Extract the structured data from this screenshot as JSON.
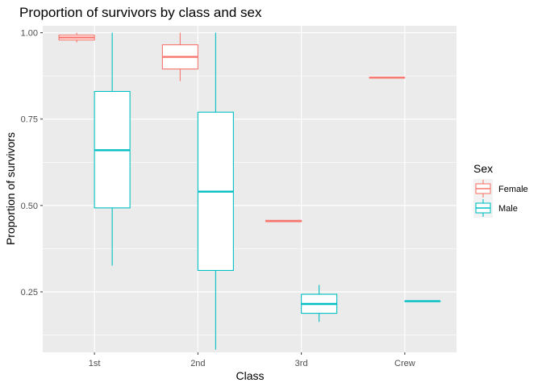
{
  "chart_data": {
    "type": "boxplot",
    "title": "Proportion of survivors by class and sex",
    "xlabel": "Class",
    "ylabel": "Proportion of survivors",
    "categories": [
      "1st",
      "2nd",
      "3rd",
      "Crew"
    ],
    "yticks": [
      0.25,
      0.5,
      0.75,
      1.0
    ],
    "ytick_labels": [
      "0.25",
      "0.50",
      "0.75",
      "1.00"
    ],
    "ylim": [
      0.075,
      1.02
    ],
    "grid": true,
    "legend": {
      "title": "Sex",
      "position": "right",
      "entries": [
        "Female",
        "Male"
      ]
    },
    "series": [
      {
        "name": "Female",
        "color": "#f8766d",
        "boxes": [
          {
            "category": "1st",
            "min": 0.972,
            "q1": 0.979,
            "median": 0.986,
            "q3": 0.993,
            "max": 1.0
          },
          {
            "category": "2nd",
            "min": 0.86,
            "q1": 0.895,
            "median": 0.93,
            "q3": 0.965,
            "max": 1.0
          },
          {
            "category": "3rd",
            "min": 0.452,
            "q1": 0.453,
            "median": 0.455,
            "q3": 0.457,
            "max": 0.458
          },
          {
            "category": "Crew",
            "min": 0.87,
            "q1": 0.87,
            "median": 0.87,
            "q3": 0.87,
            "max": 0.87
          }
        ]
      },
      {
        "name": "Male",
        "color": "#00bfc4",
        "boxes": [
          {
            "category": "1st",
            "min": 0.326,
            "q1": 0.493,
            "median": 0.66,
            "q3": 0.83,
            "max": 1.0
          },
          {
            "category": "2nd",
            "min": 0.083,
            "q1": 0.312,
            "median": 0.54,
            "q3": 0.77,
            "max": 1.0
          },
          {
            "category": "3rd",
            "min": 0.163,
            "q1": 0.188,
            "median": 0.215,
            "q3": 0.243,
            "max": 0.27
          },
          {
            "category": "Crew",
            "min": 0.223,
            "q1": 0.223,
            "median": 0.223,
            "q3": 0.223,
            "max": 0.223
          }
        ]
      }
    ]
  }
}
